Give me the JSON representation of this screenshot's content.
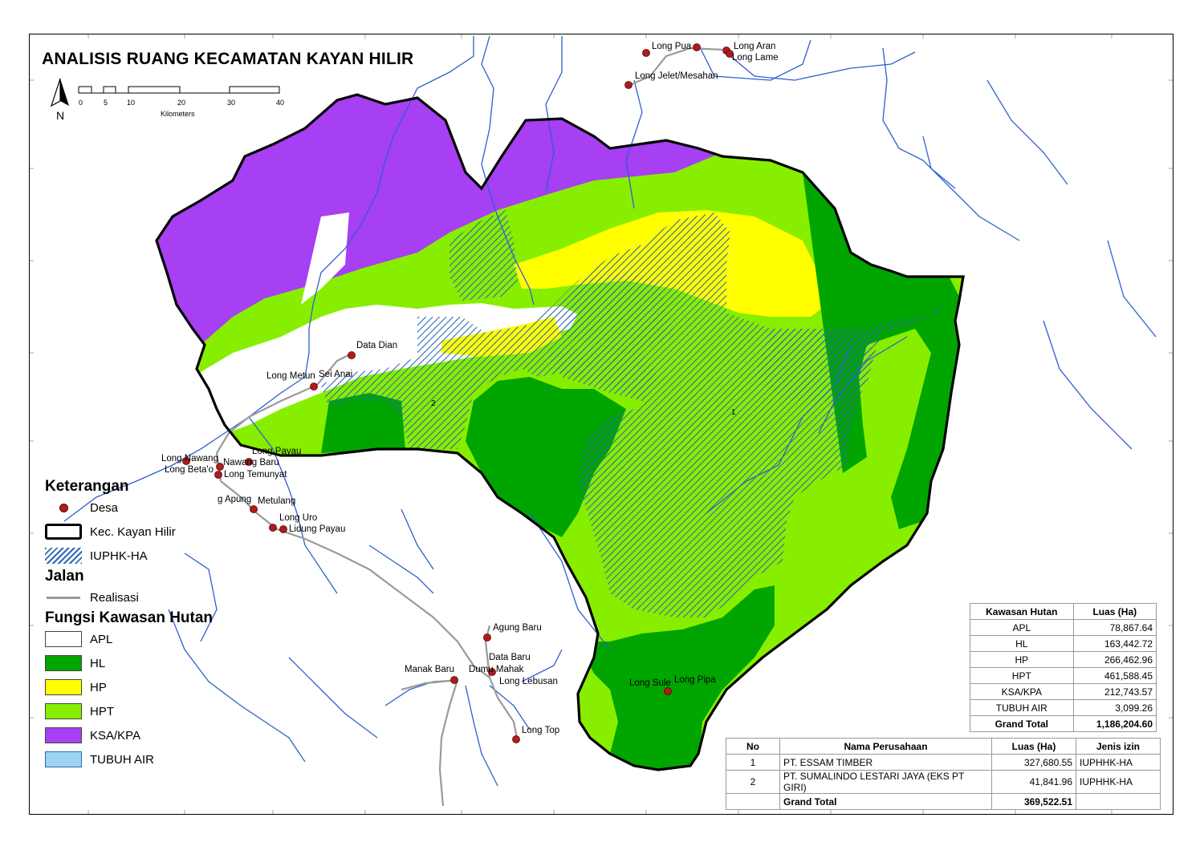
{
  "title": "ANALISIS RUANG KECAMATAN KAYAN HILIR",
  "north_arrow": {
    "label": "N",
    "icon": "north-arrow-icon"
  },
  "scale_bar": {
    "ticks": [
      "0",
      "5",
      "10",
      "20",
      "30",
      "40"
    ],
    "unit": "Kilometers"
  },
  "colors": {
    "APL": "#ffffff",
    "HL": "#00a500",
    "HP": "#ffff00",
    "HPT": "#88ee00",
    "KSA_KPA": "#a73ff2",
    "TUBUH_AIR": "#9ad4f0",
    "hatch": "#2f67b3",
    "road": "#9a9a9a",
    "river": "#2f5fd0",
    "village": "#b01c1c"
  },
  "area_numbers": [
    "1",
    "2"
  ],
  "villages": [
    "Long Pua",
    "Long Aran",
    "Long Lame",
    "Long Jelet/Mesahan",
    "Data Dian",
    "Long Metun",
    "Sei Anai",
    "Long Payau",
    "Long Nawang",
    "Nawang Baru",
    "Long Beta'o",
    "Long Temunyat",
    "g Apung",
    "Metulang",
    "Long Uro",
    "Lidung Payau",
    "Agung Baru",
    "Data Baru",
    "Manak Baru",
    "Dumu Mahak",
    "Long Lebusan",
    "Long Top",
    "Long Sule",
    "Long Pipa"
  ],
  "legend": {
    "keterangan_title": "Keterangan",
    "desa": "Desa",
    "boundary": "Kec. Kayan Hilir",
    "iuphk": "IUPHK-HA",
    "jalan_title": "Jalan",
    "realisasi": "Realisasi",
    "fungsi_title": "Fungsi Kawasan Hutan",
    "classes": [
      "APL",
      "HL",
      "HP",
      "HPT",
      "KSA/KPA",
      "TUBUH AIR"
    ]
  },
  "area_table": {
    "headers": [
      "Kawasan Hutan",
      "Luas (Ha)"
    ],
    "rows": [
      [
        "APL",
        "78,867.64"
      ],
      [
        "HL",
        "163,442.72"
      ],
      [
        "HP",
        "266,462.96"
      ],
      [
        "HPT",
        "461,588.45"
      ],
      [
        "KSA/KPA",
        "212,743.57"
      ],
      [
        "TUBUH AIR",
        "3,099.26"
      ]
    ],
    "total": [
      "Grand Total",
      "1,186,204.60"
    ]
  },
  "company_table": {
    "headers": [
      "No",
      "Nama Perusahaan",
      "Luas (Ha)",
      "Jenis izin"
    ],
    "rows": [
      [
        "1",
        "PT. ESSAM TIMBER",
        "327,680.55",
        "IUPHHK-HA"
      ],
      [
        "2",
        "PT. SUMALINDO  LESTARI JAYA (EKS PT GIRI)",
        "41,841.96",
        "IUPHHK-HA"
      ]
    ],
    "total": [
      "",
      "Grand Total",
      "369,522.51",
      ""
    ]
  }
}
